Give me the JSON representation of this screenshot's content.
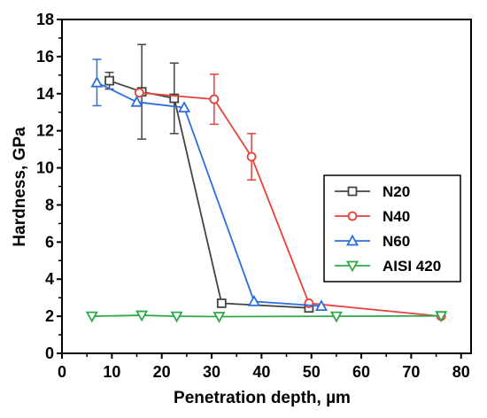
{
  "chart_data": {
    "type": "line",
    "title": "",
    "xlabel": "Penetration depth, µm",
    "ylabel": "Hardness, GPa",
    "xlim": [
      0,
      82
    ],
    "ylim": [
      0,
      18
    ],
    "x_ticks": [
      0,
      10,
      20,
      30,
      40,
      50,
      60,
      70,
      80
    ],
    "y_ticks": [
      0,
      2,
      4,
      6,
      8,
      10,
      12,
      14,
      16,
      18
    ],
    "grid": false,
    "legend_position": "middle-right",
    "series": [
      {
        "name": "N20",
        "color": "#444444",
        "marker": "square",
        "points": [
          {
            "x": 9.5,
            "y": 14.7,
            "err": 0.45
          },
          {
            "x": 16,
            "y": 14.1,
            "err": 2.55
          },
          {
            "x": 22.5,
            "y": 13.75,
            "err": 1.9
          },
          {
            "x": 32,
            "y": 2.7,
            "err": 0
          },
          {
            "x": 49.5,
            "y": 2.45,
            "err": 0
          }
        ]
      },
      {
        "name": "N40",
        "color": "#e8403a",
        "marker": "circle",
        "points": [
          {
            "x": 15.5,
            "y": 14.05,
            "err": 0
          },
          {
            "x": 30.5,
            "y": 13.7,
            "err": 1.35
          },
          {
            "x": 38,
            "y": 10.6,
            "err": 1.25
          },
          {
            "x": 49.5,
            "y": 2.7,
            "err": 0
          },
          {
            "x": 76,
            "y": 2.0,
            "err": 0
          }
        ]
      },
      {
        "name": "N60",
        "color": "#2a6fdb",
        "marker": "triangle-up",
        "points": [
          {
            "x": 7,
            "y": 14.6,
            "err": 1.25
          },
          {
            "x": 15,
            "y": 13.55,
            "err": 0
          },
          {
            "x": 24.5,
            "y": 13.25,
            "err": 0
          },
          {
            "x": 38.5,
            "y": 2.8,
            "err": 0
          },
          {
            "x": 52,
            "y": 2.55,
            "err": 0
          }
        ]
      },
      {
        "name": "AISI 420",
        "color": "#2ea84a",
        "marker": "triangle-down",
        "points": [
          {
            "x": 6,
            "y": 2.0,
            "err": 0
          },
          {
            "x": 16,
            "y": 2.05,
            "err": 0
          },
          {
            "x": 23,
            "y": 2.0,
            "err": 0
          },
          {
            "x": 31.5,
            "y": 1.98,
            "err": 0
          },
          {
            "x": 55,
            "y": 2.0,
            "err": 0
          },
          {
            "x": 76,
            "y": 2.02,
            "err": 0
          }
        ]
      }
    ]
  }
}
